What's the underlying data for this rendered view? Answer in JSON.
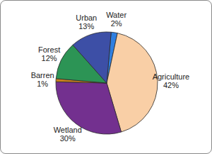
{
  "chart_data": {
    "type": "pie",
    "categories": [
      "Water",
      "Agriculture",
      "Wetland",
      "Barren",
      "Forest",
      "Urban"
    ],
    "values": [
      2,
      42,
      30,
      1,
      12,
      13
    ],
    "value_labels": [
      "2%",
      "42%",
      "30%",
      "1%",
      "12%",
      "13%"
    ],
    "colors": [
      "#2f7fe0",
      "#f9cfa6",
      "#73308f",
      "#c8801e",
      "#2c9455",
      "#3d4fa6"
    ],
    "data_labels": true
  }
}
